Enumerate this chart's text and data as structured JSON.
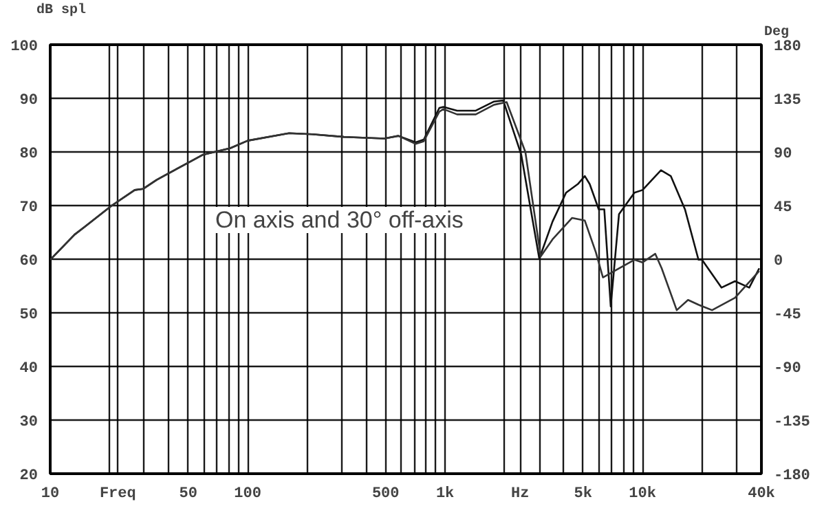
{
  "chart_data": {
    "type": "line",
    "ylabel": "dB spl",
    "y2label": "Deg",
    "log": "x",
    "annotations": [
      "On axis and 30° off-axis"
    ],
    "xlim": [
      10,
      40000
    ],
    "xticks": [
      10,
      {
        "value": 20,
        "label": null
      },
      {
        "value": 22,
        "label": "Freq"
      },
      {
        "value": 30,
        "label": null
      },
      {
        "value": 40,
        "label": null
      },
      50,
      {
        "value": 60,
        "label": null
      },
      {
        "value": 70,
        "label": null
      },
      {
        "value": 80,
        "label": null
      },
      {
        "value": 90,
        "label": null
      },
      100,
      {
        "value": 200,
        "label": null
      },
      {
        "value": 300,
        "label": null
      },
      {
        "value": 400,
        "label": null
      },
      500,
      {
        "value": 600,
        "label": null
      },
      {
        "value": 700,
        "label": null
      },
      {
        "value": 800,
        "label": null
      },
      {
        "value": 900,
        "label": null
      },
      {
        "value": 1000,
        "label": "1k"
      },
      {
        "value": 2000,
        "label": null
      },
      {
        "value": 2400,
        "label": "Hz"
      },
      {
        "value": 3000,
        "label": null
      },
      {
        "value": 4000,
        "label": null
      },
      {
        "value": 5000,
        "label": "5k"
      },
      {
        "value": 6000,
        "label": null
      },
      {
        "value": 7000,
        "label": null
      },
      {
        "value": 8000,
        "label": null
      },
      {
        "value": 9000,
        "label": null
      },
      {
        "value": 10000,
        "label": "10k"
      },
      {
        "value": 20000,
        "label": null
      },
      {
        "value": 30000,
        "label": null
      },
      {
        "value": 40000,
        "label": "40k"
      }
    ],
    "ylim": [
      20,
      100
    ],
    "yticks": [
      20,
      30,
      40,
      50,
      60,
      70,
      80,
      90,
      100
    ],
    "y2lim": [
      -180,
      180
    ],
    "y2ticks": [
      -180,
      -135,
      -90,
      -45,
      0,
      45,
      90,
      135,
      180
    ],
    "grid": true,
    "series": [
      {
        "color": "#111111",
        "x": [
          10,
          13.3,
          14.9,
          20.5,
          26.8,
          29.5,
          34.6,
          50.6,
          59.5,
          81.7,
          100,
          162,
          212,
          307,
          493,
          580,
          710,
          780,
          935,
          980,
          1150,
          1430,
          1770,
          1970,
          2430,
          3000,
          3500,
          4100,
          4700,
          5100,
          5400,
          6000,
          6400,
          6900,
          7600,
          9100,
          10000,
          12400,
          13900,
          16400,
          19200,
          20000,
          25100,
          29400,
          34700,
          39000
        ],
        "values": [
          59.9,
          64.6,
          66.0,
          70.0,
          72.9,
          73.1,
          74.8,
          78.1,
          79.5,
          80.7,
          82.1,
          83.5,
          83.3,
          82.8,
          82.5,
          83.0,
          81.8,
          82.3,
          88.2,
          88.4,
          87.7,
          87.7,
          89.4,
          89.6,
          79.5,
          60.1,
          67.0,
          72.4,
          74.0,
          75.5,
          74.0,
          69.3,
          69.3,
          51.2,
          68.4,
          72.4,
          72.9,
          76.6,
          75.5,
          69.3,
          59.9,
          59.9,
          54.7,
          55.9,
          54.7,
          58.3
        ]
      },
      {
        "color": "#333333",
        "x": [
          10,
          13.3,
          14.9,
          20.5,
          26.8,
          29.5,
          34.6,
          50.6,
          59.5,
          81.7,
          100,
          162,
          212,
          307,
          493,
          580,
          710,
          780,
          935,
          980,
          1150,
          1430,
          1770,
          2050,
          2550,
          3050,
          3500,
          4400,
          5100,
          5800,
          6300,
          7600,
          9100,
          10000,
          11600,
          12500,
          14900,
          17000,
          19200,
          22500,
          29400,
          39000
        ],
        "values": [
          59.9,
          64.6,
          66.0,
          70.0,
          72.9,
          73.1,
          74.8,
          78.1,
          79.5,
          80.7,
          82.1,
          83.5,
          83.3,
          82.8,
          82.5,
          83.0,
          81.5,
          82.0,
          87.5,
          88.0,
          87.0,
          87.0,
          88.8,
          89.3,
          80.0,
          60.5,
          63.7,
          67.7,
          67.2,
          61.3,
          56.6,
          58.3,
          59.9,
          59.4,
          61.0,
          58.3,
          50.5,
          52.4,
          51.5,
          50.5,
          52.8,
          57.8
        ]
      }
    ]
  }
}
